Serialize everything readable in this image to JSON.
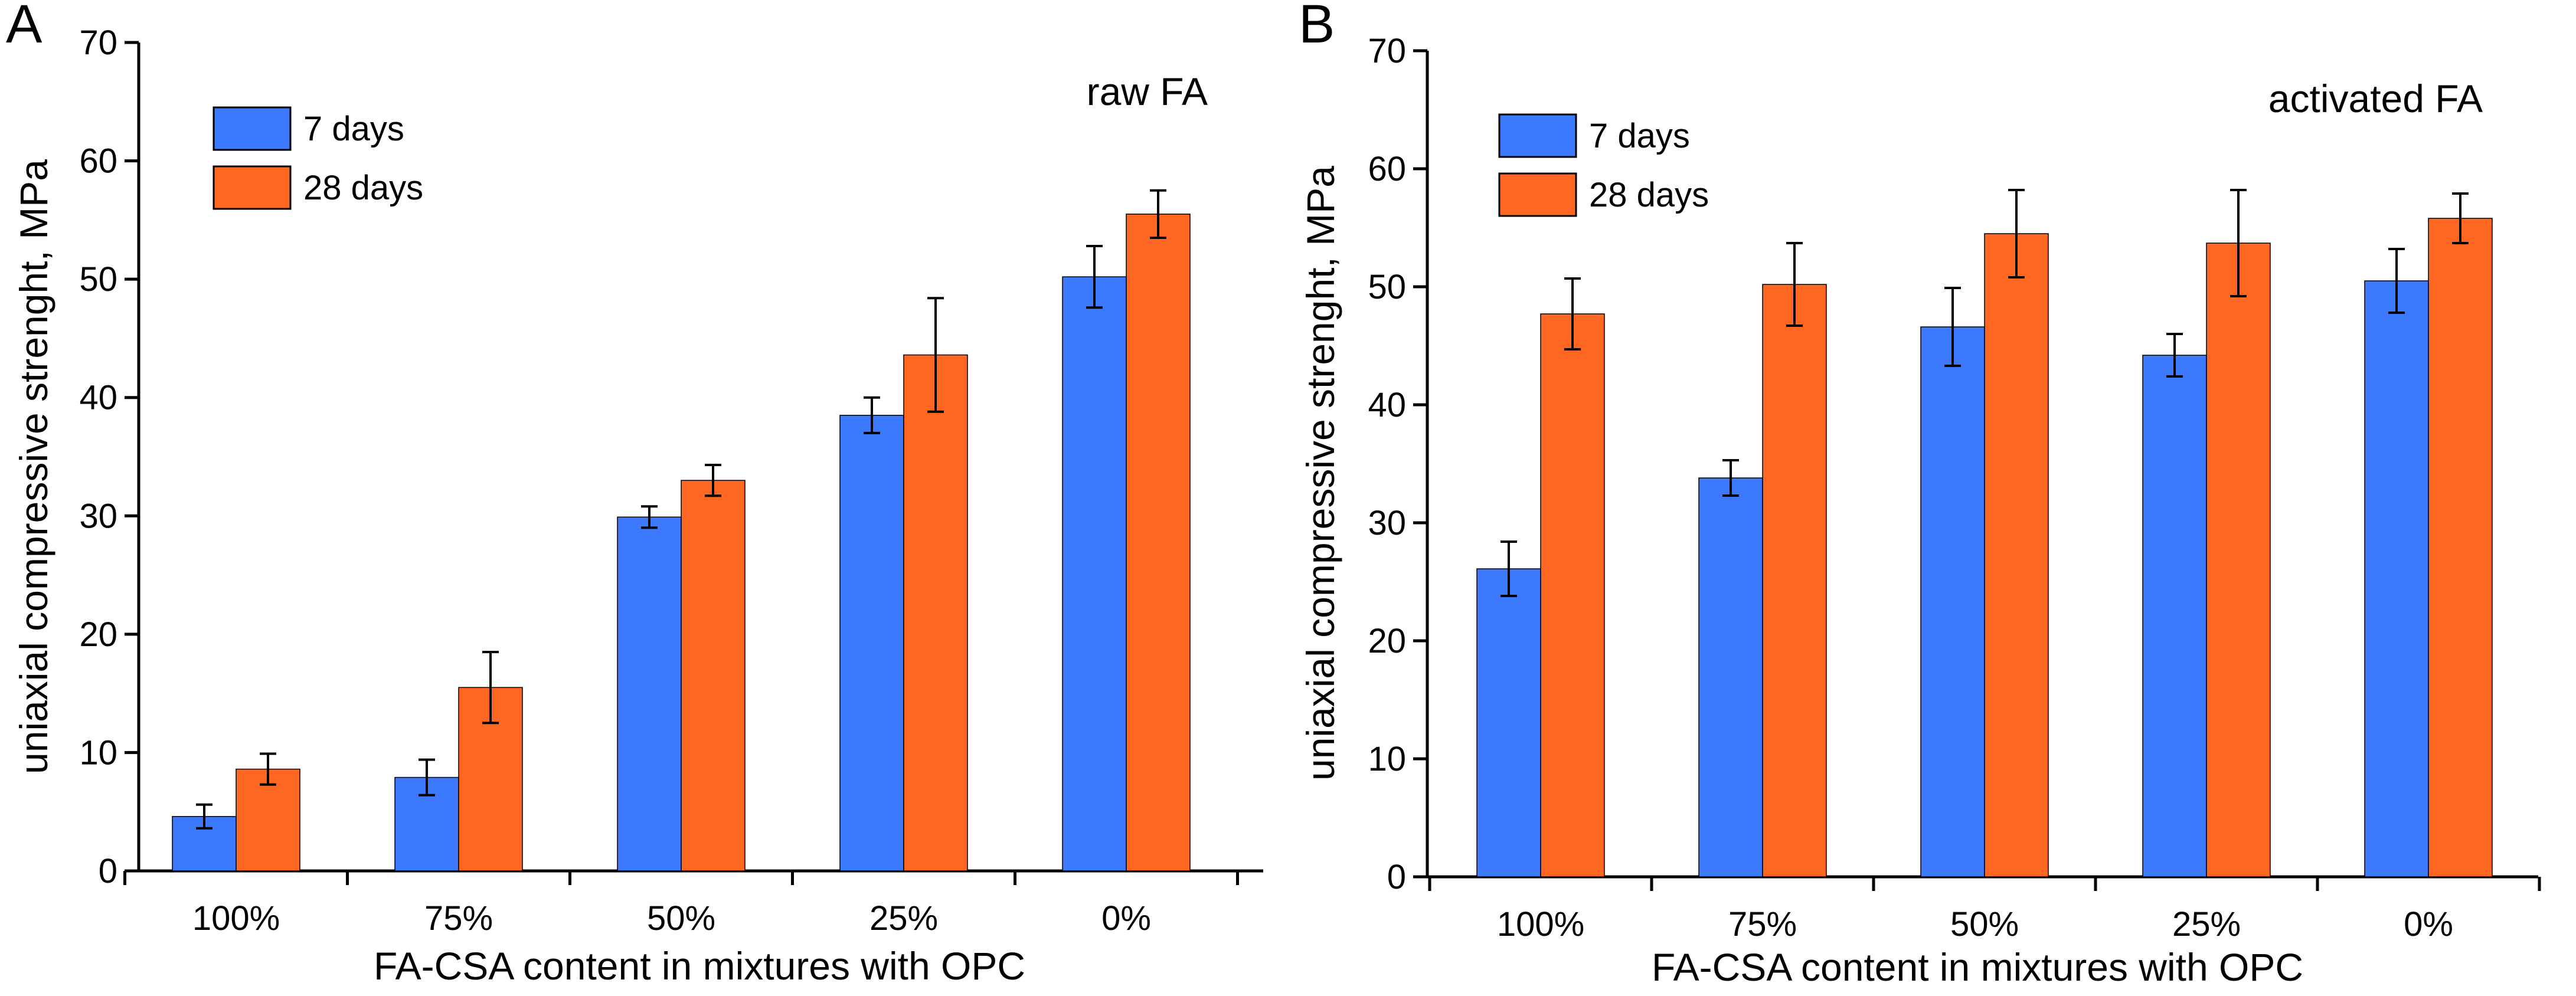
{
  "chart_data": [
    {
      "type": "bar",
      "panel_label": "A",
      "annotation": "raw FA",
      "xlabel": "FA-CSA content in mixtures with OPC",
      "ylabel": "uniaxial compressive strenght, MPa",
      "categories": [
        "100%",
        "75%",
        "50%",
        "25%",
        "0%"
      ],
      "ylim": [
        0,
        70
      ],
      "yticks": [
        "0",
        "10",
        "20",
        "30",
        "40",
        "50",
        "60",
        "70"
      ],
      "legend_position": "top-left",
      "series": [
        {
          "name": "7 days",
          "color": "#3d79fc",
          "values": [
            4.6,
            7.9,
            29.9,
            38.5,
            50.2
          ],
          "errors": [
            1.0,
            1.5,
            0.9,
            1.5,
            2.6
          ]
        },
        {
          "name": "28 days",
          "color": "#ff6622",
          "values": [
            8.6,
            15.5,
            33.0,
            43.6,
            55.5
          ],
          "errors": [
            1.3,
            3.0,
            1.3,
            4.8,
            2.0
          ]
        }
      ]
    },
    {
      "type": "bar",
      "panel_label": "B",
      "annotation": "activated FA",
      "xlabel": "FA-CSA content in mixtures with OPC",
      "ylabel": "uniaxial compressive strenght, MPa",
      "categories": [
        "100%",
        "75%",
        "50%",
        "25%",
        "0%"
      ],
      "ylim": [
        0,
        70
      ],
      "yticks": [
        "0",
        "10",
        "20",
        "30",
        "40",
        "50",
        "60",
        "70"
      ],
      "legend_position": "top-left",
      "series": [
        {
          "name": "7 days",
          "color": "#3d79fc",
          "values": [
            26.1,
            33.8,
            46.6,
            44.2,
            50.5
          ],
          "errors": [
            2.3,
            1.5,
            3.3,
            1.8,
            2.7
          ]
        },
        {
          "name": "28 days",
          "color": "#ff6622",
          "values": [
            47.7,
            50.2,
            54.5,
            53.7,
            55.8
          ],
          "errors": [
            3.0,
            3.5,
            3.7,
            4.5,
            2.1
          ]
        }
      ]
    }
  ]
}
